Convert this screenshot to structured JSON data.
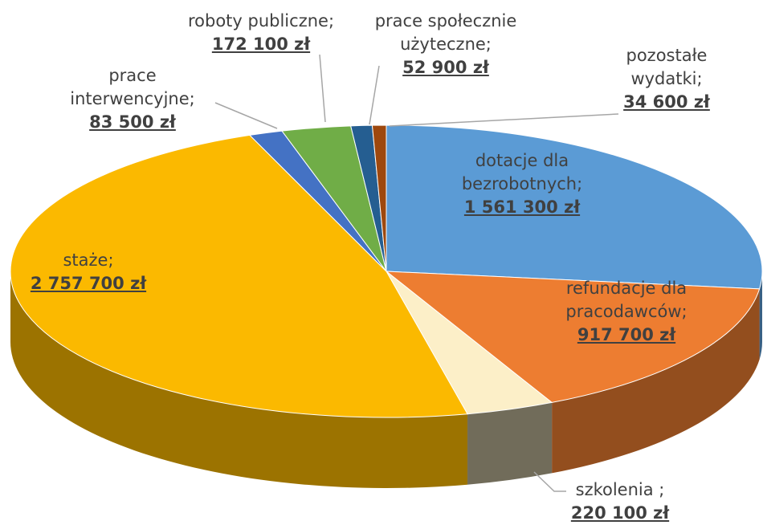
{
  "chart_data": {
    "type": "pie",
    "categories": [
      "dotacje dla bezrobotnych;",
      "refundacje dla pracodawców;",
      "szkolenia ;",
      "staże;",
      "prace interwencyjne;",
      "roboty publiczne;",
      "prace społecznie użyteczne;",
      "pozostałe wydatki;"
    ],
    "values": [
      1561300,
      917700,
      220100,
      2757700,
      83500,
      172100,
      52900,
      34600
    ],
    "value_labels": [
      "1 561 300 zł",
      "917 700 zł",
      "220 100 zł",
      "2 757 700 zł",
      "83 500 zł",
      "172 100 zł",
      "52 900 zł",
      "34 600 zł"
    ],
    "colors": [
      "#5b9bd5",
      "#ed7d31",
      "#fcefc8",
      "#fbb900",
      "#4472c4",
      "#70ad47",
      "#255e91",
      "#9e480e"
    ]
  }
}
